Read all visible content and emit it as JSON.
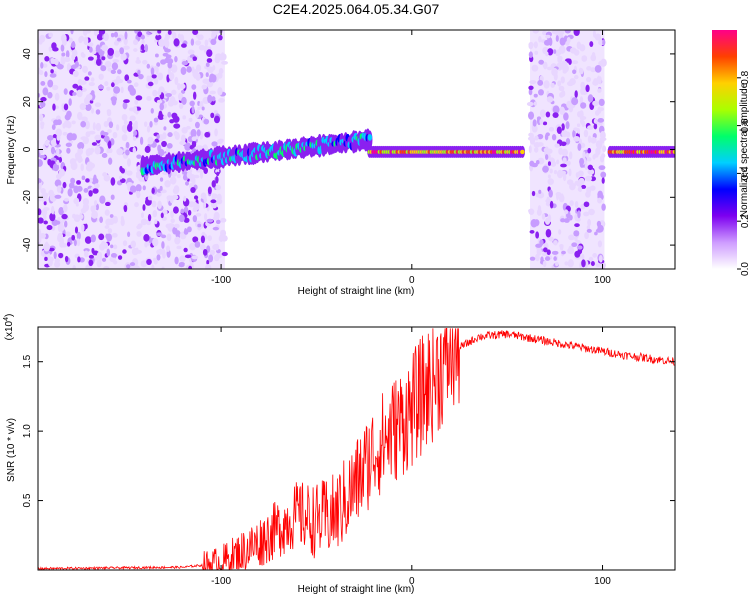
{
  "title": "C2E4.2025.064.05.34.G07",
  "chart_data": [
    {
      "type": "heatmap",
      "xlabel": "Height of straight line (km)",
      "ylabel": "Frequency (Hz)",
      "xlim": [
        -196,
        138
      ],
      "ylim": [
        -50,
        50
      ],
      "xticks": [
        -100,
        0,
        100
      ],
      "yticks": [
        -40,
        -20,
        0,
        20,
        40
      ],
      "colorbar": {
        "label": "Normalized spectral amplitude",
        "range": [
          0,
          1
        ],
        "ticks": [
          0.0,
          0.2,
          0.4,
          0.6,
          0.8
        ],
        "colors": [
          "#ffffff",
          "#ce9cff",
          "#7d00f0",
          "#0000ff",
          "#00cfff",
          "#00ff6a",
          "#aaff00",
          "#ffd000",
          "#ff4000",
          "#ff0088"
        ]
      },
      "features": [
        {
          "name": "noise",
          "x": [
            -196,
            -98
          ],
          "amplitude": 0.2
        },
        {
          "name": "noise",
          "x": [
            62,
            101
          ],
          "amplitude": 0.2
        },
        {
          "name": "trace",
          "x": [
            -141,
            -22
          ],
          "y": [
            -7,
            4
          ],
          "amplitude": 0.5
        },
        {
          "name": "trace",
          "x": [
            -22,
            58
          ],
          "y": [
            -1,
            -1
          ],
          "amplitude": 0.9
        },
        {
          "name": "trace",
          "x": [
            104,
            138
          ],
          "y": [
            -1,
            -1
          ],
          "amplitude": 1.0
        }
      ],
      "grid": false
    },
    {
      "type": "line",
      "xlabel": "Height of straight line (km)",
      "ylabel": "SNR (10 * v/v)",
      "y_multiplier": "(x10",
      "y_multiplier_exp": "4",
      "xlim": [
        -196,
        138
      ],
      "ylim": [
        0,
        1.75
      ],
      "xticks": [
        -100,
        0,
        100
      ],
      "yticks": [
        0.5,
        1.0,
        1.5
      ],
      "ytick_labels": [
        "0.5",
        "1.0",
        "1.5"
      ],
      "series": [
        {
          "color": "#ff0000",
          "x": [
            -196,
            -120,
            -100,
            -90,
            -80,
            -70,
            -60,
            -50,
            -40,
            -30,
            -20,
            -10,
            0,
            10,
            20,
            25,
            35,
            50,
            70,
            90,
            110,
            138
          ],
          "y": [
            0.01,
            0.02,
            0.05,
            0.12,
            0.2,
            0.3,
            0.4,
            0.35,
            0.4,
            0.6,
            0.85,
            1.0,
            1.15,
            1.35,
            1.55,
            1.6,
            1.68,
            1.7,
            1.65,
            1.6,
            1.55,
            1.5
          ]
        }
      ],
      "grid": false
    }
  ]
}
